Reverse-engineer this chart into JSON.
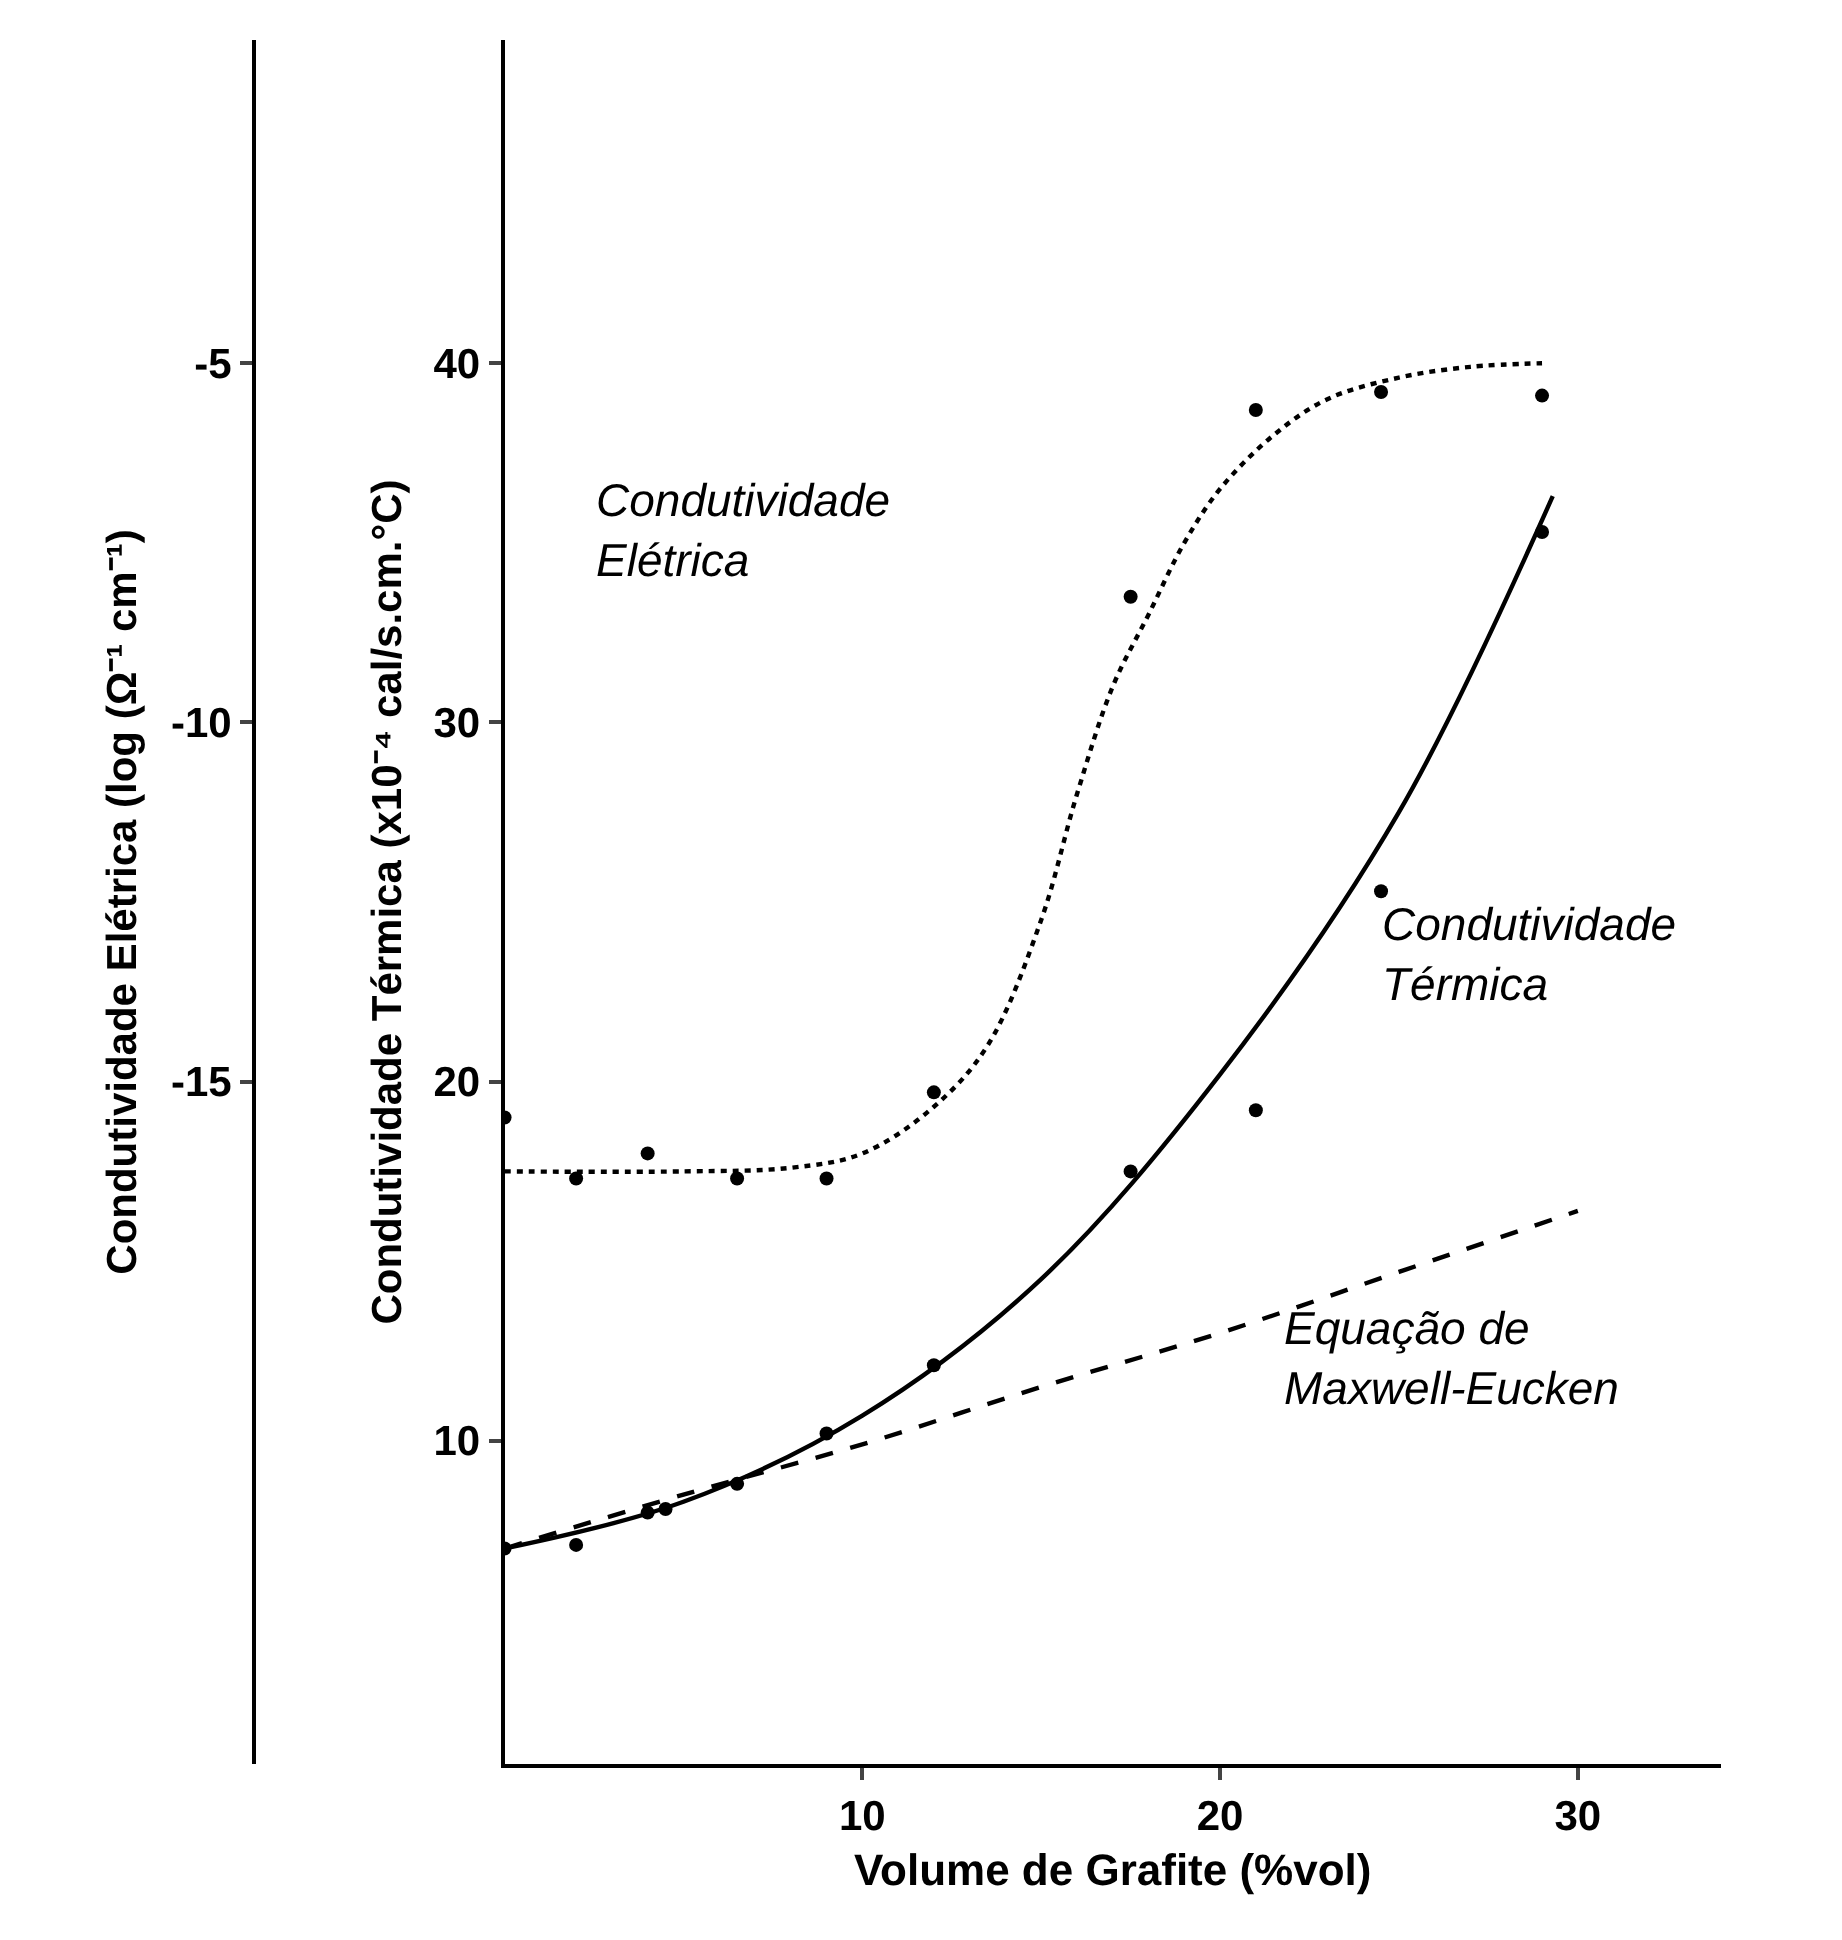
{
  "chart_data": {
    "type": "line",
    "xlabel": "Volume de Grafite (%vol)",
    "ylabel": "Condutividade Térmica (x10⁻⁴ cal/s.cm.°C)",
    "y2label": "Condutividade Elétrica (log (Ω⁻¹ cm⁻¹)",
    "xlim": [
      0,
      34
    ],
    "xticks": [
      10,
      20,
      30
    ],
    "ylim": [
      1,
      49
    ],
    "yticks": [
      10,
      20,
      30,
      40
    ],
    "y2lim": [
      -24.5,
      -0.5
    ],
    "y2ticks": [
      -5,
      -10,
      -15
    ],
    "series": [
      {
        "type": "scatter",
        "axis": "y2",
        "marker": "circle",
        "color": "#000000",
        "x": [
          0,
          2,
          4,
          6.5,
          9,
          12,
          17.5,
          21,
          24.5,
          29
        ],
        "values": [
          -15.5,
          -16.35,
          -16,
          -16.35,
          -16.35,
          -15.15,
          -8.25,
          -5.65,
          -5.4,
          -5.45
        ]
      },
      {
        "axis": "y2",
        "line_style": "dotted",
        "color": "#000000",
        "x": [
          0,
          5,
          8,
          10,
          12,
          13.5,
          15,
          16,
          17,
          18,
          19,
          20,
          21.5,
          23,
          25,
          27,
          29
        ],
        "values": [
          -16.25,
          -16.25,
          -16.2,
          -16,
          -15.35,
          -14.5,
          -12.75,
          -11,
          -9.5,
          -8.5,
          -7.5,
          -6.75,
          -6,
          -5.5,
          -5.2,
          -5.05,
          -5
        ]
      },
      {
        "type": "scatter",
        "marker": "circle",
        "color": "#000000",
        "x": [
          0,
          2,
          4,
          4.5,
          6.5,
          9,
          12,
          17.5,
          21,
          24.5,
          29
        ],
        "values": [
          7,
          7.1,
          8,
          8.1,
          8.8,
          10.2,
          12.1,
          17.5,
          19.2,
          25.3,
          35.3
        ]
      },
      {
        "line_style": "solid",
        "color": "#000000",
        "x": [
          0,
          5,
          10,
          15,
          20,
          25,
          29.3
        ],
        "values": [
          7,
          8.3,
          10.7,
          14.5,
          20.2,
          27.5,
          36.3
        ]
      },
      {
        "line_style": "dashed",
        "color": "#000000",
        "x": [
          0,
          5,
          10,
          15,
          20,
          25,
          30
        ],
        "values": [
          7,
          8.5,
          9.9,
          11.5,
          13,
          14.7,
          16.4
        ]
      }
    ],
    "annotations": [
      "Condutividade\nElétrica",
      "Condutividade\nTérmica",
      "Equação de\nMaxwell-Eucken"
    ]
  }
}
